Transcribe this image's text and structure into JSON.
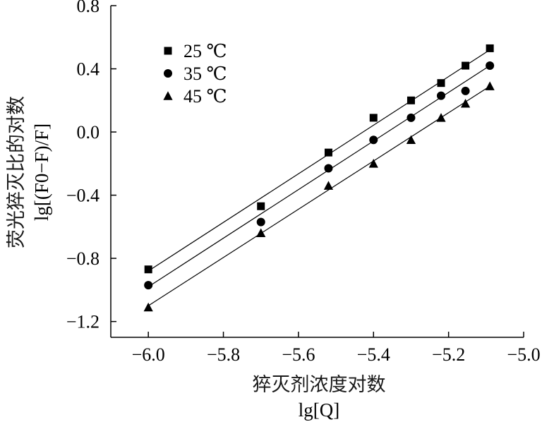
{
  "chart_data": {
    "type": "scatter",
    "xlabel": "猝灭剂浓度对数",
    "xlabel_sub": "lg[Q]",
    "ylabel": "荧光猝灭比的对数",
    "ylabel_sub": "lg[(F0−F)/F]",
    "xlim": [
      -6.1,
      -5.0
    ],
    "ylim": [
      -1.3,
      0.8
    ],
    "x_ticks": [
      -6.0,
      -5.8,
      -5.6,
      -5.4,
      -5.2,
      -5.0
    ],
    "x_tick_labels": [
      "−6.0",
      "−5.8",
      "−5.6",
      "−5.4",
      "−5.2",
      "−5.0"
    ],
    "y_ticks": [
      0.8,
      0.4,
      0.0,
      -0.4,
      -0.8,
      -1.2
    ],
    "y_tick_labels": [
      "0.8",
      "0.4",
      "0.0",
      "−0.4",
      "−0.8",
      "−1.2"
    ],
    "grid": false,
    "legend_position": "top-left",
    "series": [
      {
        "name": "25 ℃",
        "marker": "square",
        "x": [
          -6.0,
          -5.7,
          -5.52,
          -5.4,
          -5.3,
          -5.22,
          -5.155,
          -5.09
        ],
        "y": [
          -0.87,
          -0.47,
          -0.13,
          0.09,
          0.2,
          0.31,
          0.42,
          0.53
        ],
        "fit": [
          [
            -6.0,
            -0.88
          ],
          [
            -5.09,
            0.52
          ]
        ]
      },
      {
        "name": "35 ℃",
        "marker": "circle",
        "x": [
          -6.0,
          -5.7,
          -5.52,
          -5.4,
          -5.3,
          -5.22,
          -5.155,
          -5.09
        ],
        "y": [
          -0.97,
          -0.57,
          -0.23,
          -0.05,
          0.09,
          0.23,
          0.26,
          0.42
        ],
        "fit": [
          [
            -6.0,
            -0.98
          ],
          [
            -5.09,
            0.42
          ]
        ]
      },
      {
        "name": "45 ℃",
        "marker": "triangle",
        "x": [
          -6.0,
          -5.7,
          -5.52,
          -5.4,
          -5.3,
          -5.22,
          -5.155,
          -5.09
        ],
        "y": [
          -1.11,
          -0.64,
          -0.34,
          -0.2,
          -0.05,
          0.09,
          0.18,
          0.29
        ],
        "fit": [
          [
            -6.0,
            -1.1
          ],
          [
            -5.09,
            0.29
          ]
        ]
      }
    ]
  }
}
